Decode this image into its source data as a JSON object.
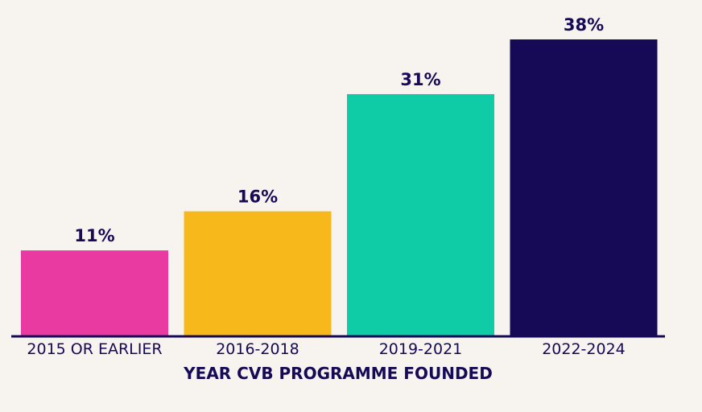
{
  "chart_data": {
    "type": "bar",
    "title": "",
    "xlabel": "YEAR CVB PROGRAMME FOUNDED",
    "ylabel": "",
    "ylim": [
      0,
      38
    ],
    "categories": [
      "2015 OR EARLIER",
      "2016-2018",
      "2019-2021",
      "2022-2024"
    ],
    "values": [
      11,
      16,
      31,
      38
    ],
    "value_labels": [
      "11%",
      "16%",
      "31%",
      "38%"
    ],
    "colors": [
      "#e83aa0",
      "#f6b81a",
      "#0fcba6",
      "#160a56"
    ],
    "grid": false,
    "legend": "none"
  },
  "theme": {
    "background": "#f7f3ef",
    "text_color": "#160a56",
    "axis_color": "#160a56"
  }
}
